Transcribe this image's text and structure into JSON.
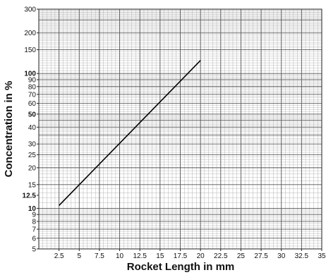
{
  "chart_data": {
    "type": "line",
    "title": "",
    "xlabel": "Rocket Length in mm",
    "ylabel": "Concentration in %",
    "x_scale": "linear",
    "y_scale": "log",
    "xlim": [
      0,
      35
    ],
    "ylim": [
      5,
      300
    ],
    "grid": true,
    "x_tick_labels": [
      "2.5",
      "5",
      "7.5",
      "10",
      "12.5",
      "15",
      "17.5",
      "20",
      "22.5",
      "25",
      "27.5",
      "30",
      "32.5",
      "35"
    ],
    "y_ticks": [
      {
        "value": 5,
        "label": "5",
        "bold": false
      },
      {
        "value": 6,
        "label": "6",
        "bold": false
      },
      {
        "value": 7,
        "label": "7",
        "bold": false
      },
      {
        "value": 8,
        "label": "8",
        "bold": false
      },
      {
        "value": 9,
        "label": "9",
        "bold": false
      },
      {
        "value": 10,
        "label": "10",
        "bold": true
      },
      {
        "value": 12.5,
        "label": "12.5",
        "bold": true
      },
      {
        "value": 15,
        "label": "15",
        "bold": false
      },
      {
        "value": 20,
        "label": "20",
        "bold": false
      },
      {
        "value": 25,
        "label": "25",
        "bold": false
      },
      {
        "value": 30,
        "label": "30",
        "bold": false
      },
      {
        "value": 40,
        "label": "40",
        "bold": false
      },
      {
        "value": 50,
        "label": "50",
        "bold": true
      },
      {
        "value": 60,
        "label": "60",
        "bold": false
      },
      {
        "value": 70,
        "label": "70",
        "bold": false
      },
      {
        "value": 80,
        "label": "80",
        "bold": false
      },
      {
        "value": 90,
        "label": "90",
        "bold": false
      },
      {
        "value": 100,
        "label": "100",
        "bold": true
      },
      {
        "value": 150,
        "label": "150",
        "bold": false
      },
      {
        "value": 200,
        "label": "200",
        "bold": false
      },
      {
        "value": 300,
        "label": "300",
        "bold": false
      }
    ],
    "series": [
      {
        "x": [
          2.5,
          20.0
        ],
        "y": [
          10.5,
          125
        ]
      }
    ]
  }
}
